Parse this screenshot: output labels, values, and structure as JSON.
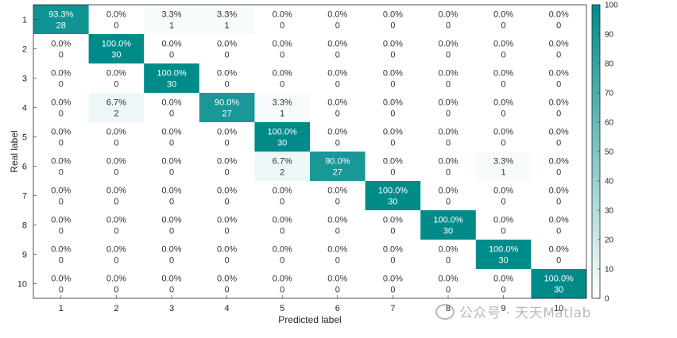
{
  "chart_data": {
    "type": "heatmap",
    "title": "",
    "xlabel": "Predicted label",
    "ylabel": "Real label",
    "x_categories": [
      "1",
      "2",
      "3",
      "4",
      "5",
      "6",
      "7",
      "8",
      "9",
      "10"
    ],
    "y_categories": [
      "1",
      "2",
      "3",
      "4",
      "5",
      "6",
      "7",
      "8",
      "9",
      "10"
    ],
    "colorbar": {
      "min": 0,
      "max": 100,
      "ticks": [
        0,
        10,
        20,
        30,
        40,
        50,
        60,
        70,
        80,
        90,
        100
      ],
      "color_low": "#ffffff",
      "color_high": "#008b8b"
    },
    "counts": [
      [
        28,
        0,
        1,
        1,
        0,
        0,
        0,
        0,
        0,
        0
      ],
      [
        0,
        30,
        0,
        0,
        0,
        0,
        0,
        0,
        0,
        0
      ],
      [
        0,
        0,
        30,
        0,
        0,
        0,
        0,
        0,
        0,
        0
      ],
      [
        0,
        2,
        0,
        27,
        1,
        0,
        0,
        0,
        0,
        0
      ],
      [
        0,
        0,
        0,
        0,
        30,
        0,
        0,
        0,
        0,
        0
      ],
      [
        0,
        0,
        0,
        0,
        2,
        27,
        0,
        0,
        1,
        0
      ],
      [
        0,
        0,
        0,
        0,
        0,
        0,
        30,
        0,
        0,
        0
      ],
      [
        0,
        0,
        0,
        0,
        0,
        0,
        0,
        30,
        0,
        0
      ],
      [
        0,
        0,
        0,
        0,
        0,
        0,
        0,
        0,
        30,
        0
      ],
      [
        0,
        0,
        0,
        0,
        0,
        0,
        0,
        0,
        0,
        30
      ]
    ],
    "percentages": [
      [
        "93.3%",
        "0.0%",
        "3.3%",
        "3.3%",
        "0.0%",
        "0.0%",
        "0.0%",
        "0.0%",
        "0.0%",
        "0.0%"
      ],
      [
        "0.0%",
        "100.0%",
        "0.0%",
        "0.0%",
        "0.0%",
        "0.0%",
        "0.0%",
        "0.0%",
        "0.0%",
        "0.0%"
      ],
      [
        "0.0%",
        "0.0%",
        "100.0%",
        "0.0%",
        "0.0%",
        "0.0%",
        "0.0%",
        "0.0%",
        "0.0%",
        "0.0%"
      ],
      [
        "0.0%",
        "6.7%",
        "0.0%",
        "90.0%",
        "3.3%",
        "0.0%",
        "0.0%",
        "0.0%",
        "0.0%",
        "0.0%"
      ],
      [
        "0.0%",
        "0.0%",
        "0.0%",
        "0.0%",
        "100.0%",
        "0.0%",
        "0.0%",
        "0.0%",
        "0.0%",
        "0.0%"
      ],
      [
        "0.0%",
        "0.0%",
        "0.0%",
        "0.0%",
        "6.7%",
        "90.0%",
        "0.0%",
        "0.0%",
        "3.3%",
        "0.0%"
      ],
      [
        "0.0%",
        "0.0%",
        "0.0%",
        "0.0%",
        "0.0%",
        "0.0%",
        "100.0%",
        "0.0%",
        "0.0%",
        "0.0%"
      ],
      [
        "0.0%",
        "0.0%",
        "0.0%",
        "0.0%",
        "0.0%",
        "0.0%",
        "0.0%",
        "100.0%",
        "0.0%",
        "0.0%"
      ],
      [
        "0.0%",
        "0.0%",
        "0.0%",
        "0.0%",
        "0.0%",
        "0.0%",
        "0.0%",
        "0.0%",
        "100.0%",
        "0.0%"
      ],
      [
        "0.0%",
        "0.0%",
        "0.0%",
        "0.0%",
        "0.0%",
        "0.0%",
        "0.0%",
        "0.0%",
        "0.0%",
        "100.0%"
      ]
    ],
    "percent_values": [
      [
        93.3,
        0,
        3.3,
        3.3,
        0,
        0,
        0,
        0,
        0,
        0
      ],
      [
        0,
        100,
        0,
        0,
        0,
        0,
        0,
        0,
        0,
        0
      ],
      [
        0,
        0,
        100,
        0,
        0,
        0,
        0,
        0,
        0,
        0
      ],
      [
        0,
        6.7,
        0,
        90,
        3.3,
        0,
        0,
        0,
        0,
        0
      ],
      [
        0,
        0,
        0,
        0,
        100,
        0,
        0,
        0,
        0,
        0
      ],
      [
        0,
        0,
        0,
        0,
        6.7,
        90,
        0,
        0,
        3.3,
        0
      ],
      [
        0,
        0,
        0,
        0,
        0,
        0,
        100,
        0,
        0,
        0
      ],
      [
        0,
        0,
        0,
        0,
        0,
        0,
        0,
        100,
        0,
        0
      ],
      [
        0,
        0,
        0,
        0,
        0,
        0,
        0,
        0,
        100,
        0
      ],
      [
        0,
        0,
        0,
        0,
        0,
        0,
        0,
        0,
        0,
        100
      ]
    ]
  },
  "watermark": {
    "text": "公众号 · 天天Matlab"
  }
}
